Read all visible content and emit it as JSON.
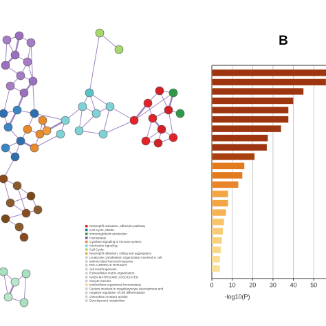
{
  "panel_label": "B",
  "network_legend": [
    "Neutrophil activation, adhesion pathway",
    "Cell Cycle, Mitotic",
    "immunoglobulin production",
    "Hemostasis",
    "Cytokine signaling in immune system",
    "Interleukin signaling",
    "Cell Cycle",
    "Neutrophil adhesion, rolling and aggregation",
    "Leukocyte cytoskeleton organization involved in cell",
    "antimicrobial humoral response",
    "PID AURORA B PATHWAY",
    "cell morphogenesis",
    "Extracellular matrix organization",
    "NABA MATRISOME ASSOCIATED",
    "Oocyte meiosis",
    "multicellular organismal homeostasis",
    "Factors involved in megakaryocyte development and",
    "negative regulation of cell differentiation",
    "chemokine receptor activity",
    "Development metabolism"
  ],
  "chart_data": {
    "type": "bar",
    "orientation": "horizontal",
    "xlabel": "-log10(P)",
    "categories": [
      null,
      null,
      null,
      null,
      null,
      null,
      null,
      null,
      null,
      null,
      null,
      null,
      null,
      null,
      null,
      null,
      null,
      null,
      null,
      null,
      null,
      null
    ],
    "values": [
      58,
      56,
      45,
      40,
      37.6,
      37.6,
      34,
      27.5,
      27,
      21,
      16,
      15,
      13,
      8,
      8,
      7,
      6,
      5.5,
      5,
      4.5,
      4,
      4
    ],
    "colors": [
      "#9c3510",
      "#9c3510",
      "#9c3510",
      "#9c3510",
      "#9c3510",
      "#9c3510",
      "#9c3510",
      "#9c3510",
      "#9c3510",
      "#a8400f",
      "#e27a1e",
      "#e27a1e",
      "#e8852a",
      "#f2a545",
      "#f2a545",
      "#f5b355",
      "#f8c66a",
      "#f8cc74",
      "#f9d27e",
      "#fad788",
      "#fadb90",
      "#fbdf98"
    ],
    "xlim": [
      0,
      56
    ],
    "xticks": [
      0,
      10,
      20,
      30,
      40,
      50
    ],
    "grid": true
  }
}
